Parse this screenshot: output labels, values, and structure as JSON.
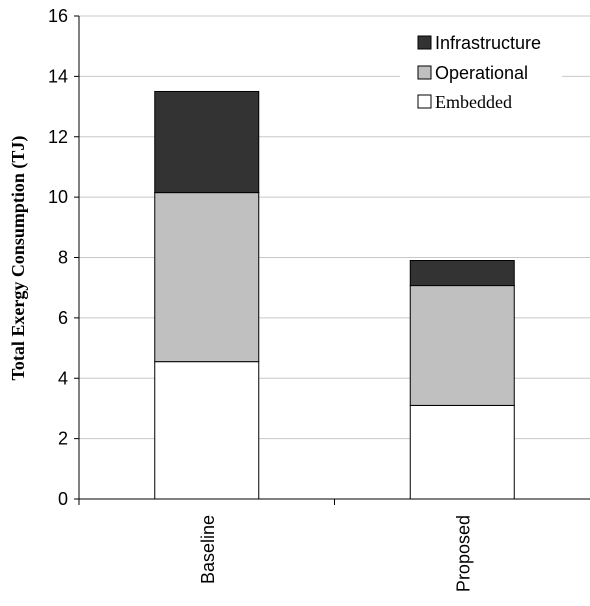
{
  "chart_data": {
    "type": "bar",
    "stacked": true,
    "categories": [
      "Baseline",
      "Proposed"
    ],
    "series": [
      {
        "name": "Embedded",
        "values": [
          4.55,
          3.1
        ],
        "color": "#ffffff"
      },
      {
        "name": "Operational",
        "values": [
          5.6,
          3.97
        ],
        "color": "#c0c0c0"
      },
      {
        "name": "Infrastructure",
        "values": [
          3.35,
          0.83
        ],
        "color": "#333333"
      }
    ],
    "ylabel": "Total Exergy Consumption (TJ)",
    "xlabel": "",
    "title": "",
    "ylim": [
      0,
      16
    ],
    "yticks": [
      0,
      2,
      4,
      6,
      8,
      10,
      12,
      14,
      16
    ],
    "grid": true,
    "legend_position": "top-right",
    "legend_order": [
      "Infrastructure",
      "Operational",
      "Embedded"
    ]
  }
}
